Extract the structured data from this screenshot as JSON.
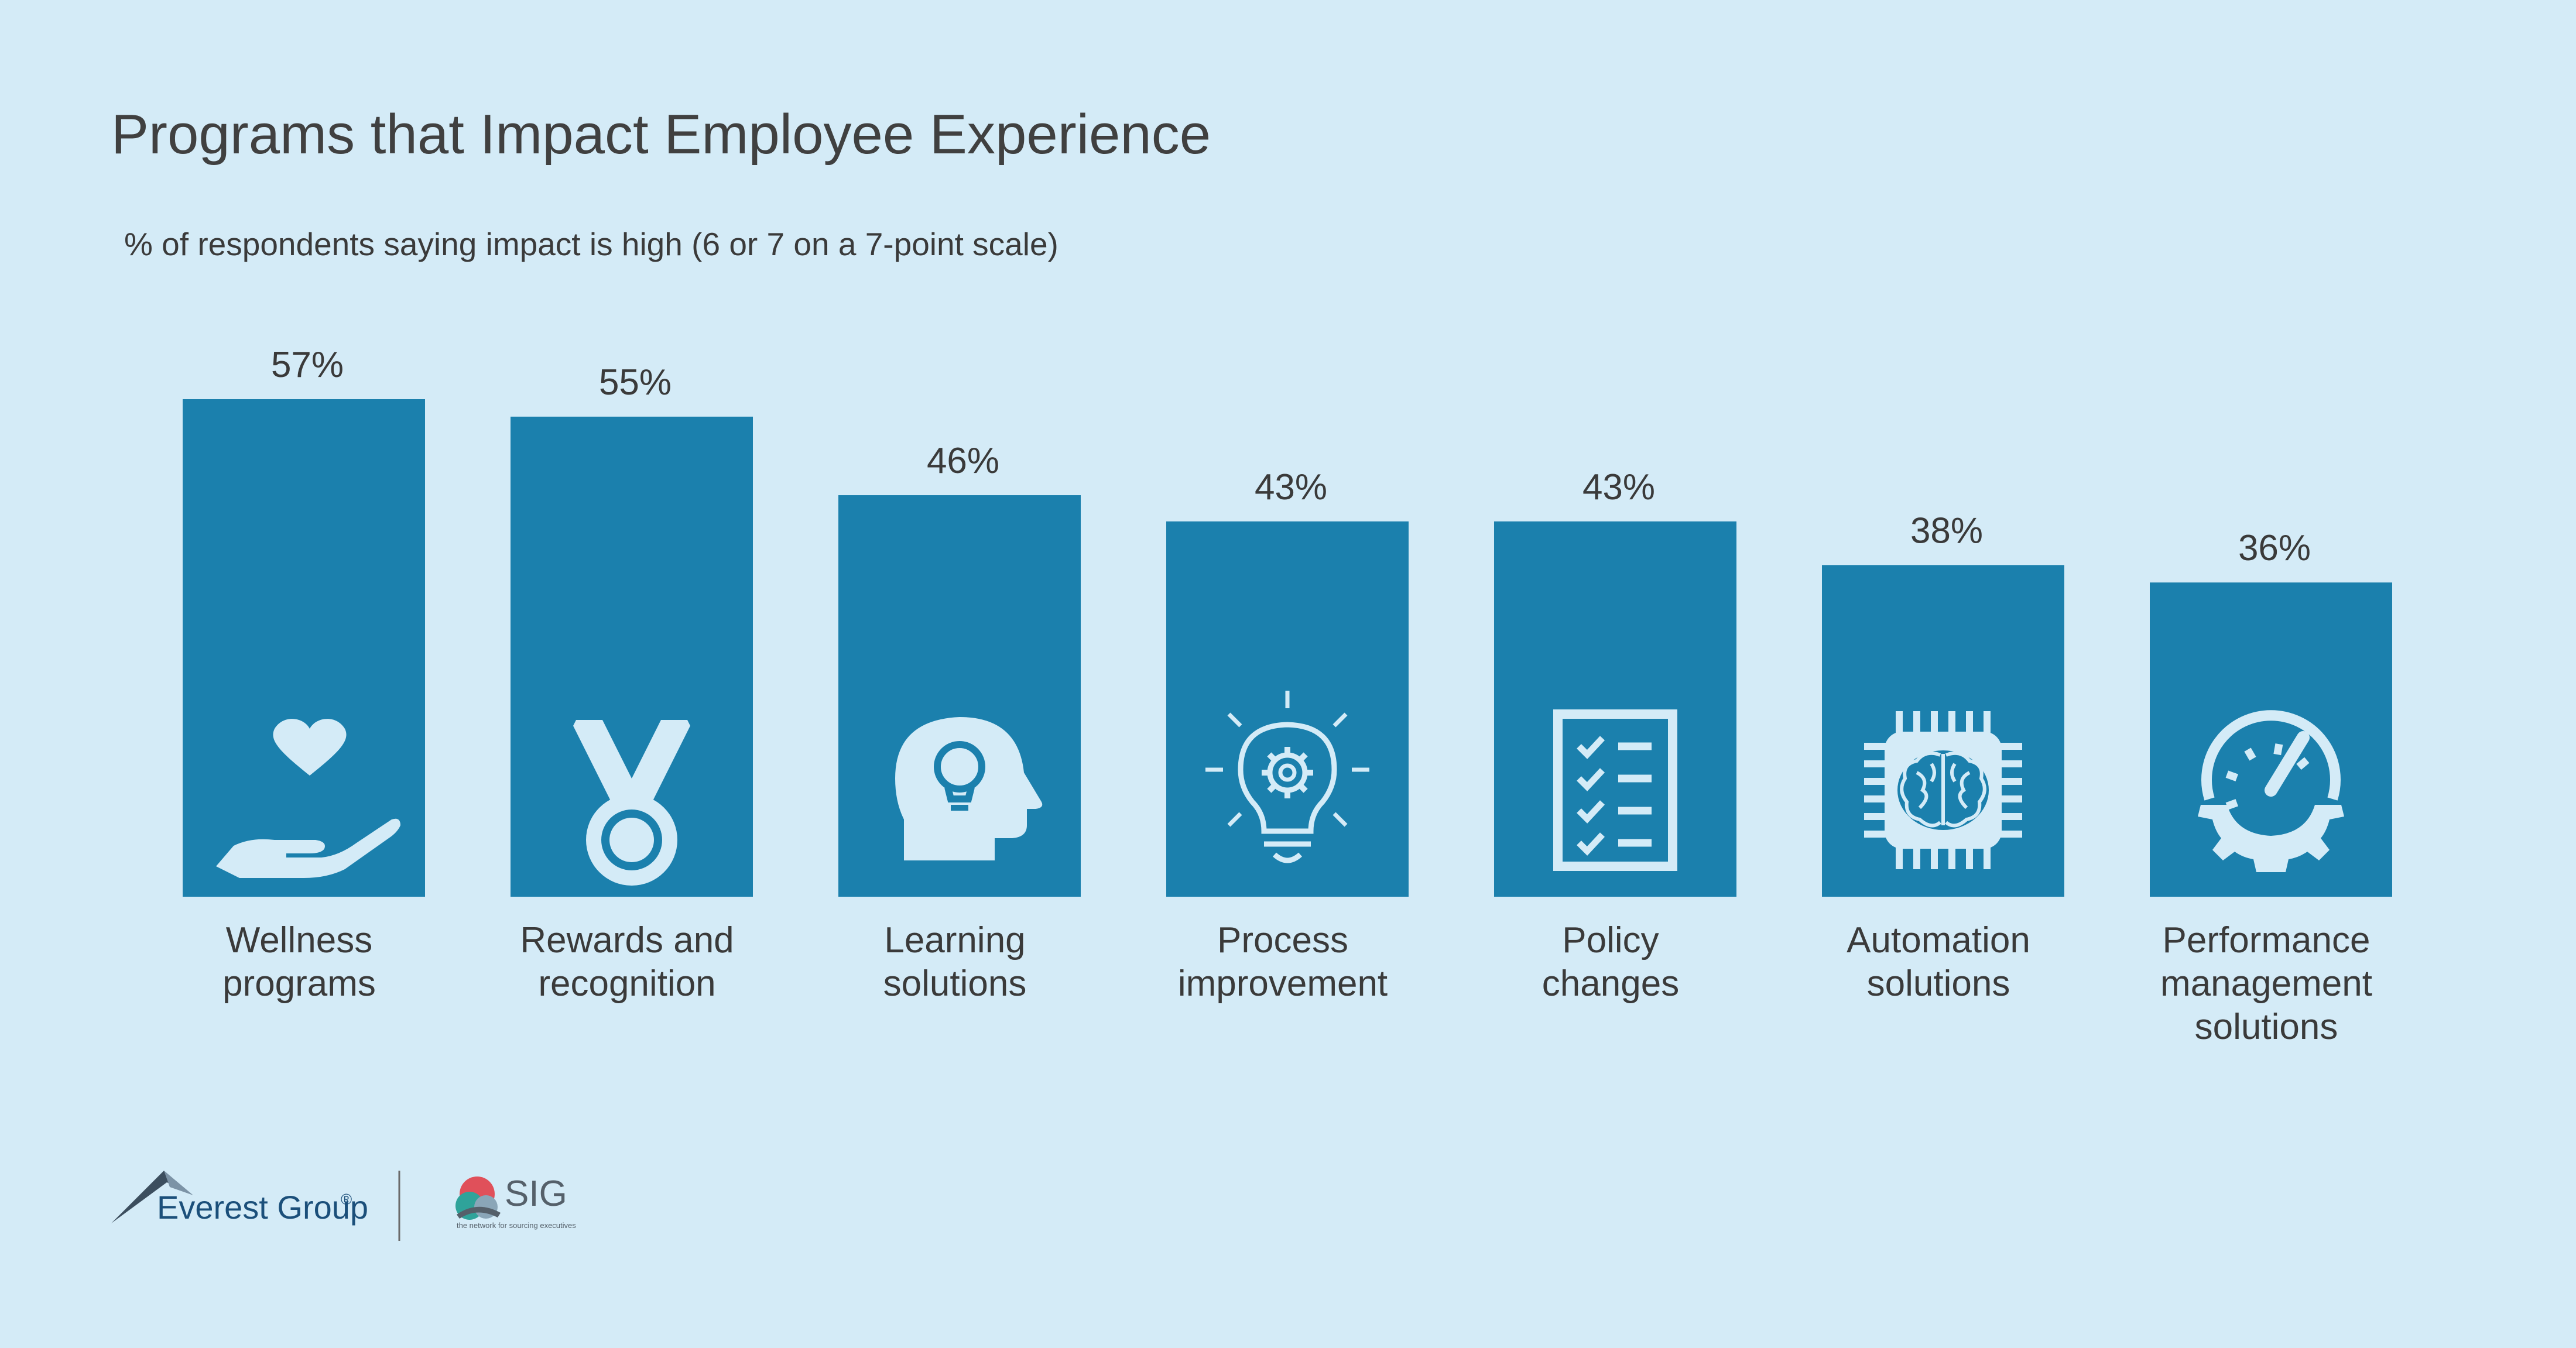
{
  "header": {
    "title": "Programs that Impact Employee Experience",
    "subtitle": "% of respondents saying impact is high (6 or 7 on a 7-point scale)"
  },
  "chart_data": {
    "type": "bar",
    "title": "Programs that Impact Employee Experience",
    "subtitle": "% of respondents saying impact is high (6 or 7 on a 7-point scale)",
    "categories": [
      [
        "Wellness",
        "programs"
      ],
      [
        "Rewards and",
        "recognition"
      ],
      [
        "Learning",
        "solutions"
      ],
      [
        "Process",
        "improvement"
      ],
      [
        "Policy",
        "changes"
      ],
      [
        "Automation",
        "solutions"
      ],
      [
        "Performance",
        "management",
        "solutions"
      ]
    ],
    "values": [
      57,
      55,
      46,
      43,
      43,
      38,
      36
    ],
    "value_labels": [
      "57%",
      "55%",
      "46%",
      "43%",
      "43%",
      "38%",
      "36%"
    ],
    "icons": [
      "heart-hand-icon",
      "medal-icon",
      "head-lightbulb-icon",
      "lightbulb-gear-icon",
      "checklist-icon",
      "brain-chip-icon",
      "gauge-gear-icon"
    ],
    "unit": "%",
    "ylim": [
      0,
      57
    ],
    "grid": false,
    "legend": "none",
    "bar_color": "#1b80ad",
    "icon_color": "#d4ebf7",
    "background_color": "#d4ebf7"
  },
  "logos": {
    "everest_text": "Everest Group",
    "everest_mark": "®",
    "sig_text": "SIG",
    "sig_tagline": "the network for sourcing executives"
  }
}
